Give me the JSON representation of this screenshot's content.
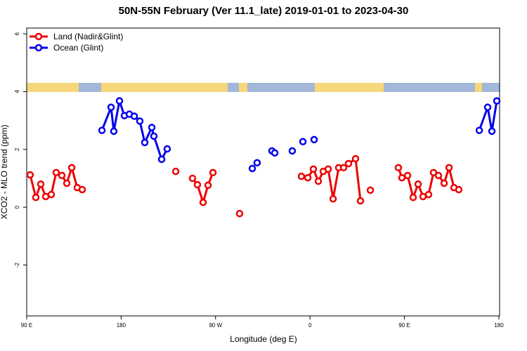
{
  "chart_data": {
    "type": "line",
    "title": "50N-55N February (Ver 11.1_late)   2019-01-01 to 2023-04-30",
    "xlabel": "Longitude (deg E)",
    "ylabel": "XCO2 - MLO trend (ppm)",
    "xlim": [
      90,
      540
    ],
    "ylim": [
      -3.76,
      6.2
    ],
    "xticks": [
      {
        "value": 90,
        "label": "90 E"
      },
      {
        "value": 180,
        "label": "180"
      },
      {
        "value": 270,
        "label": "90 W"
      },
      {
        "value": 360,
        "label": "0"
      },
      {
        "value": 450,
        "label": "90 E"
      },
      {
        "value": 540,
        "label": "180"
      }
    ],
    "yticks": [
      -2,
      0,
      2,
      4,
      6
    ],
    "legend": "topleft",
    "series": [
      {
        "name": "Land (Nadir&Glint)",
        "color": "#ee0000",
        "x": [
          93.3,
          98.7,
          103.4,
          108.1,
          113.4,
          118.1,
          123.5,
          128.2,
          132.9,
          138.2,
          142.9,
          null,
          232.0,
          null,
          248.0,
          252.7,
          258.1,
          262.8,
          267.5,
          null,
          292.9,
          null,
          351.8,
          357.9,
          363.2,
          367.9,
          372.6,
          377.3,
          382.0,
          387.3,
          392.0,
          396.7,
          403.4,
          408.1,
          null,
          417.5,
          null,
          444.2,
          447.6,
          453.0,
          458.3,
          463.0,
          467.7,
          473.0,
          477.7,
          482.4,
          487.8,
          492.5,
          497.2,
          501.8
        ],
        "values": [
          1.12,
          0.34,
          0.8,
          0.37,
          0.44,
          1.2,
          1.1,
          0.83,
          1.37,
          0.68,
          0.61,
          null,
          1.24,
          null,
          1.0,
          0.78,
          0.17,
          0.76,
          1.2,
          null,
          -0.22,
          null,
          1.07,
          1.02,
          1.32,
          0.9,
          1.24,
          1.32,
          0.29,
          1.37,
          1.37,
          1.51,
          1.68,
          0.22,
          null,
          0.59,
          null,
          1.37,
          1.02,
          1.1,
          0.34,
          0.8,
          0.37,
          0.44,
          1.2,
          1.1,
          0.83,
          1.37,
          0.68,
          0.61
        ]
      },
      {
        "name": "Ocean (Glint)",
        "color": "#0000ee",
        "x": [
          161.7,
          170.4,
          173.0,
          178.4,
          183.1,
          187.8,
          192.5,
          197.8,
          202.5,
          209.2,
          211.2,
          218.6,
          223.9,
          null,
          305.0,
          null,
          309.6,
          null,
          323.7,
          326.4,
          null,
          343.1,
          null,
          353.2,
          null,
          363.9,
          null,
          521.3,
          529.3,
          533.3,
          538.0
        ],
        "values": [
          2.66,
          3.46,
          2.63,
          3.68,
          3.17,
          3.22,
          3.15,
          2.98,
          2.24,
          2.76,
          2.46,
          1.66,
          2.02,
          null,
          1.34,
          null,
          1.54,
          null,
          1.95,
          1.88,
          null,
          1.95,
          null,
          2.27,
          null,
          2.34,
          null,
          2.66,
          3.46,
          2.63,
          3.68
        ]
      }
    ]
  }
}
